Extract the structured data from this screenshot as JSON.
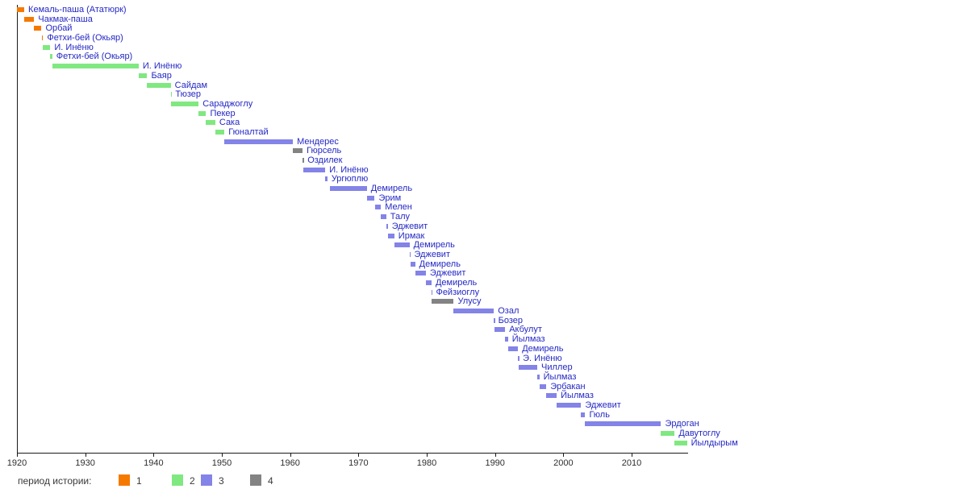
{
  "chart_data": {
    "type": "bar",
    "subtype": "gantt-timeline",
    "title": "",
    "xlabel": "",
    "ylabel": "",
    "legend_label": "период истории:",
    "legend_items": [
      {
        "label": "1",
        "period": "1"
      },
      {
        "label": "2",
        "period": "2"
      },
      {
        "label": "3",
        "period": "3"
      },
      {
        "label": "4",
        "period": "4"
      }
    ],
    "period_colors": {
      "1": "#f57900",
      "2": "#80e880",
      "3": "#8383e8",
      "4": "#838383"
    },
    "label_color": "#2428c4",
    "x_axis": {
      "min": 1920,
      "max": 2018.3,
      "ticks": [
        1920,
        1930,
        1940,
        1950,
        1960,
        1970,
        1980,
        1990,
        2000,
        2010
      ]
    },
    "bars": [
      {
        "name": "Кемаль-паша (Ататюрк)",
        "start": 1920.05,
        "end": 1921.07,
        "period": "1"
      },
      {
        "name": "Чакмак-паша",
        "start": 1921.07,
        "end": 1922.53,
        "period": "1"
      },
      {
        "name": "Орбай",
        "start": 1922.53,
        "end": 1923.6,
        "period": "1"
      },
      {
        "name": "Фетхи-бей (Окьяр)",
        "start": 1923.61,
        "end": 1923.82,
        "period": "1"
      },
      {
        "name": "И. Инёню",
        "start": 1923.83,
        "end": 1924.89,
        "period": "2"
      },
      {
        "name": "Фетхи-бей (Окьяр)",
        "start": 1924.9,
        "end": 1925.17,
        "period": "2"
      },
      {
        "name": "И. Инёню",
        "start": 1925.17,
        "end": 1937.82,
        "period": "2"
      },
      {
        "name": "Баяр",
        "start": 1937.82,
        "end": 1939.07,
        "period": "2"
      },
      {
        "name": "Сайдам",
        "start": 1939.07,
        "end": 1942.52,
        "period": "2"
      },
      {
        "name": "Тюзер",
        "start": 1942.52,
        "end": 1942.6,
        "period": "2"
      },
      {
        "name": "Сараджоглу",
        "start": 1942.6,
        "end": 1946.6,
        "period": "2"
      },
      {
        "name": "Пекер",
        "start": 1946.6,
        "end": 1947.69,
        "period": "2"
      },
      {
        "name": "Сака",
        "start": 1947.69,
        "end": 1949.04,
        "period": "2"
      },
      {
        "name": "Гюналтай",
        "start": 1949.04,
        "end": 1950.39,
        "period": "2"
      },
      {
        "name": "Мендерес",
        "start": 1950.39,
        "end": 1960.41,
        "period": "3"
      },
      {
        "name": "Гюрсель",
        "start": 1960.41,
        "end": 1961.83,
        "period": "4"
      },
      {
        "name": "Оздилек",
        "start": 1961.83,
        "end": 1961.95,
        "period": "4"
      },
      {
        "name": "И. Инёню",
        "start": 1961.95,
        "end": 1965.14,
        "period": "3"
      },
      {
        "name": "Ургюплю",
        "start": 1965.14,
        "end": 1965.45,
        "period": "3"
      },
      {
        "name": "Демирель",
        "start": 1965.82,
        "end": 1971.23,
        "period": "3"
      },
      {
        "name": "Эрим",
        "start": 1971.23,
        "end": 1972.38,
        "period": "3"
      },
      {
        "name": "Мелен",
        "start": 1972.39,
        "end": 1973.29,
        "period": "3"
      },
      {
        "name": "Талу",
        "start": 1973.29,
        "end": 1974.07,
        "period": "3"
      },
      {
        "name": "Эджевит",
        "start": 1974.07,
        "end": 1974.3,
        "period": "3"
      },
      {
        "name": "Ирмак",
        "start": 1974.3,
        "end": 1975.25,
        "period": "3"
      },
      {
        "name": "Демирель",
        "start": 1975.25,
        "end": 1977.47,
        "period": "3"
      },
      {
        "name": "Эджевит",
        "start": 1977.47,
        "end": 1977.58,
        "period": "3"
      },
      {
        "name": "Демирель",
        "start": 1977.58,
        "end": 1978.3,
        "period": "3"
      },
      {
        "name": "Эджевит",
        "start": 1978.3,
        "end": 1979.87,
        "period": "3"
      },
      {
        "name": "Демирель",
        "start": 1979.87,
        "end": 1980.7,
        "period": "3"
      },
      {
        "name": "Фейзиоглу",
        "start": 1980.7,
        "end": 1980.76,
        "period": "3"
      },
      {
        "name": "Улусу",
        "start": 1980.76,
        "end": 1983.95,
        "period": "4"
      },
      {
        "name": "Озал",
        "start": 1983.95,
        "end": 1989.83,
        "period": "3"
      },
      {
        "name": "Бозер",
        "start": 1989.83,
        "end": 1989.88,
        "period": "3"
      },
      {
        "name": "Акбулут",
        "start": 1989.88,
        "end": 1991.48,
        "period": "3"
      },
      {
        "name": "Йылмаз",
        "start": 1991.48,
        "end": 1991.89,
        "period": "3"
      },
      {
        "name": "Демирель",
        "start": 1991.89,
        "end": 1993.37,
        "period": "3"
      },
      {
        "name": "Э. Инёню",
        "start": 1993.37,
        "end": 1993.48,
        "period": "3"
      },
      {
        "name": "Чиллер",
        "start": 1993.48,
        "end": 1996.18,
        "period": "3"
      },
      {
        "name": "Йылмаз",
        "start": 1996.18,
        "end": 1996.49,
        "period": "3"
      },
      {
        "name": "Эрбакан",
        "start": 1996.49,
        "end": 1997.5,
        "period": "3"
      },
      {
        "name": "Йылмаз",
        "start": 1997.5,
        "end": 1999.03,
        "period": "3"
      },
      {
        "name": "Эджевит",
        "start": 1999.03,
        "end": 2002.6,
        "period": "3"
      },
      {
        "name": "Гюль",
        "start": 2002.6,
        "end": 2003.2,
        "period": "3"
      },
      {
        "name": "Эрдоган",
        "start": 2003.2,
        "end": 2014.3,
        "period": "3"
      },
      {
        "name": "Давутоглу",
        "start": 2014.3,
        "end": 2016.3,
        "period": "2"
      },
      {
        "name": "Йылдырым",
        "start": 2016.3,
        "end": 2018.1,
        "period": "2"
      }
    ]
  }
}
